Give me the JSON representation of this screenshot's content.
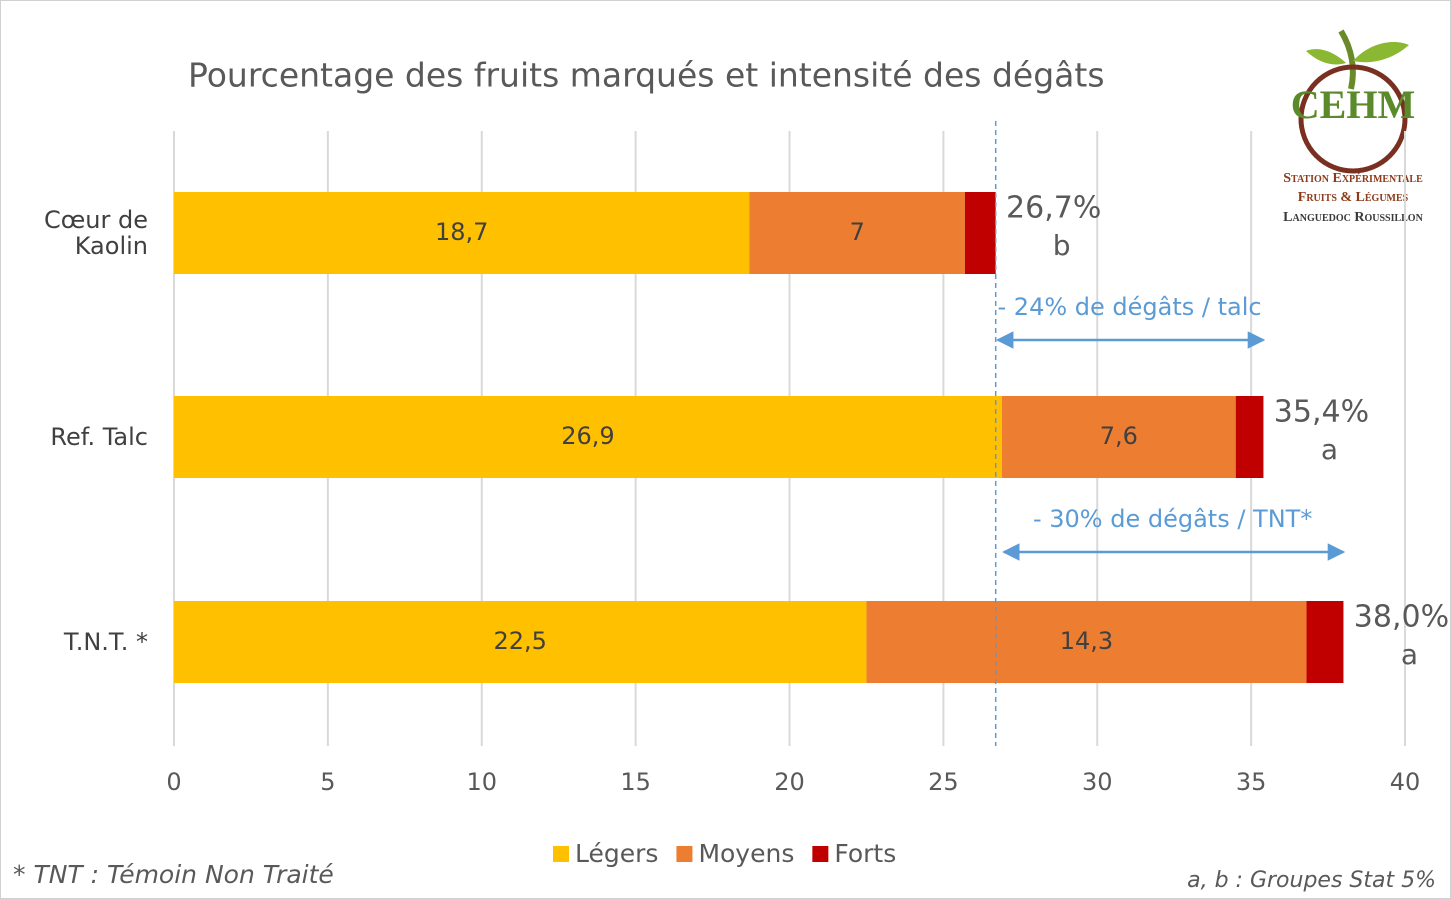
{
  "chart_data": {
    "type": "stacked-barh",
    "title": "Pourcentage des fruits marqués et intensité des dégâts",
    "categories": [
      "Cœur de Kaolin",
      "Ref. Talc",
      "T.N.T. *"
    ],
    "series": [
      {
        "name": "Légers",
        "color": "#ffc000",
        "values": [
          18.7,
          26.9,
          22.5
        ],
        "value_labels": [
          "18,7",
          "26,9",
          "22,5"
        ]
      },
      {
        "name": "Moyens",
        "color": "#ed7d31",
        "values": [
          7,
          7.6,
          14.3
        ],
        "value_labels": [
          "7",
          "7,6",
          "14,3"
        ]
      },
      {
        "name": "Forts",
        "color": "#c00000",
        "values": [
          1.0,
          0.9,
          1.2
        ]
      }
    ],
    "totals": [
      26.7,
      35.4,
      38.0
    ],
    "total_labels": [
      "26,7%",
      "35,4%",
      "38,0%"
    ],
    "groups": [
      "b",
      "a",
      "a"
    ],
    "arrows": [
      {
        "label": "- 24% de dégâts / talc",
        "from": 26.7,
        "to": 35.4
      },
      {
        "label": "- 30% de dégâts / TNT*",
        "from": 26.9,
        "to": 38.0
      }
    ],
    "xlim": [
      0,
      40
    ],
    "xticks": [
      0,
      5,
      10,
      15,
      20,
      25,
      30,
      35,
      40
    ],
    "grid": true,
    "legend": "bottom",
    "footnote_left": "* TNT  : Témoin Non Traité",
    "footnote_right": "a, b : Groupes Stat 5%",
    "logo": {
      "name": "CEHM",
      "lines": [
        "Station Expérimentale",
        "Fruits & Légumes",
        "Languedoc Roussillon"
      ]
    }
  }
}
